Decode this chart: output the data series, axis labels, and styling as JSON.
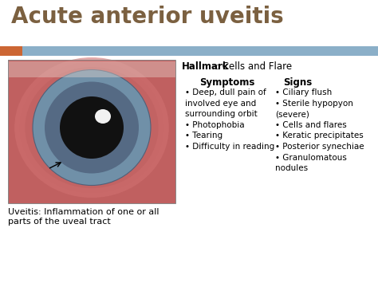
{
  "title": "Acute anterior uveitis",
  "title_color": "#7B6040",
  "title_fontsize": 20,
  "bg_color": "#FFFFFF",
  "header_bar_color": "#8BAFC8",
  "header_bar_orange": "#CC6633",
  "hallmark_bold": "Hallmark",
  "hallmark_rest": ": Cells and Flare",
  "symptoms_header": "Symptoms",
  "sym_text": "• Deep, dull pain of\ninvolved eye and\nsurrounding orbit\n• Photophobia\n• Tearing\n• Difficulty in reading",
  "signs_header": "Signs",
  "signs_text": "• Ciliary flush\n• Sterile hypopyon\n(severe)\n• Cells and flares\n• Keratic precipitates\n• Posterior synechiae\n• Granulomatous\nnodules",
  "caption": "Uveitis: Inflammation of one or all\nparts of the uveal tract",
  "caption_fontsize": 8.0,
  "text_fontsize": 7.5,
  "header_fontsize": 8.5,
  "hallmark_fontsize": 8.5
}
